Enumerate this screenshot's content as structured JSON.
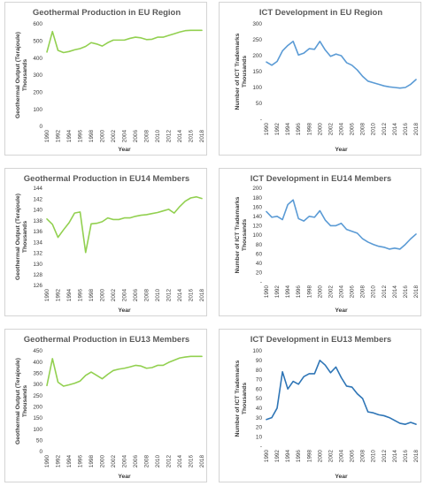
{
  "colors": {
    "geothermal": "#92d050",
    "ict": "#5b9bd5",
    "ict_eu13": "#2e75b6"
  },
  "chart_data": [
    {
      "type": "line",
      "title": "Geothermal Production in EU Region",
      "ylabel": "Geothermal Output (Terajoule)",
      "yunit": "Thousands",
      "xlabel": "Year",
      "x": [
        1990,
        1991,
        1992,
        1993,
        1994,
        1995,
        1996,
        1997,
        1998,
        1999,
        2000,
        2001,
        2002,
        2003,
        2004,
        2005,
        2006,
        2007,
        2008,
        2009,
        2010,
        2011,
        2012,
        2013,
        2014,
        2015,
        2016,
        2017,
        2018
      ],
      "values": [
        435,
        555,
        445,
        432,
        438,
        448,
        455,
        468,
        490,
        482,
        470,
        490,
        505,
        505,
        505,
        515,
        522,
        518,
        508,
        510,
        522,
        522,
        532,
        542,
        552,
        560,
        562,
        562,
        562
      ],
      "ylim": [
        0,
        600
      ],
      "yticks": [
        "0",
        "100",
        "200",
        "300",
        "400",
        "500",
        "600"
      ],
      "xticks": [
        "1990",
        "1992",
        "1994",
        "1996",
        "1998",
        "2000",
        "2002",
        "2004",
        "2006",
        "2008",
        "2010",
        "2012",
        "2014",
        "2016",
        "2018"
      ],
      "color": "#92d050"
    },
    {
      "type": "line",
      "title": "ICT Development in EU Region",
      "ylabel": "Number of ICT Trademarks",
      "yunit": "Thousands",
      "xlabel": "Year",
      "x": [
        1990,
        1991,
        1992,
        1993,
        1994,
        1995,
        1996,
        1997,
        1998,
        1999,
        2000,
        2001,
        2002,
        2003,
        2004,
        2005,
        2006,
        2007,
        2008,
        2009,
        2010,
        2011,
        2012,
        2013,
        2014,
        2015,
        2016,
        2017,
        2018
      ],
      "values": [
        180,
        170,
        182,
        215,
        232,
        245,
        202,
        208,
        222,
        220,
        245,
        218,
        198,
        205,
        200,
        178,
        170,
        155,
        135,
        120,
        115,
        110,
        105,
        102,
        100,
        98,
        100,
        110,
        125
      ],
      "ylim": [
        0,
        300
      ],
      "yticks": [
        "-",
        "50",
        "100",
        "150",
        "200",
        "250",
        "300"
      ],
      "xticks": [
        "1990",
        "1992",
        "1994",
        "1996",
        "1998",
        "2000",
        "2002",
        "2004",
        "2006",
        "2008",
        "2010",
        "2012",
        "2014",
        "2016",
        "2018"
      ],
      "color": "#5b9bd5"
    },
    {
      "type": "line",
      "title": "Geothermal Production in EU14 Members",
      "ylabel": "Geothermal Output (Terajoule)",
      "yunit": "Thousands",
      "xlabel": "Year",
      "x": [
        1990,
        1991,
        1992,
        1993,
        1994,
        1995,
        1996,
        1997,
        1998,
        1999,
        2000,
        2001,
        2002,
        2003,
        2004,
        2005,
        2006,
        2007,
        2008,
        2009,
        2010,
        2011,
        2012,
        2013,
        2014,
        2015,
        2016,
        2017,
        2018
      ],
      "values": [
        138.3,
        137.3,
        134.9,
        136.3,
        137.6,
        139.4,
        139.6,
        132.1,
        137.4,
        137.5,
        137.8,
        138.5,
        138.2,
        138.2,
        138.5,
        138.5,
        138.8,
        139.0,
        139.1,
        139.3,
        139.5,
        139.8,
        140.1,
        139.4,
        140.6,
        141.6,
        142.2,
        142.4,
        142.1
      ],
      "ylim": [
        126,
        144
      ],
      "yticks": [
        "126",
        "128",
        "130",
        "132",
        "134",
        "136",
        "138",
        "140",
        "142",
        "144"
      ],
      "xticks": [
        "1990",
        "1992",
        "1994",
        "1996",
        "1998",
        "2000",
        "2002",
        "2004",
        "2006",
        "2008",
        "2010",
        "2012",
        "2014",
        "2016",
        "2018"
      ],
      "color": "#92d050"
    },
    {
      "type": "line",
      "title": "ICT Development in EU14 Members",
      "ylabel": "Number of ICT Trademarks",
      "yunit": "Thousands",
      "xlabel": "Year",
      "x": [
        1990,
        1991,
        1992,
        1993,
        1994,
        1995,
        1996,
        1997,
        1998,
        1999,
        2000,
        2001,
        2002,
        2003,
        2004,
        2005,
        2006,
        2007,
        2008,
        2009,
        2010,
        2011,
        2012,
        2013,
        2014,
        2015,
        2016,
        2017,
        2018
      ],
      "values": [
        150,
        138,
        140,
        133,
        165,
        175,
        135,
        130,
        140,
        138,
        152,
        132,
        120,
        120,
        125,
        112,
        108,
        104,
        92,
        85,
        80,
        76,
        74,
        70,
        72,
        70,
        80,
        92,
        102
      ],
      "ylim": [
        0,
        200
      ],
      "yticks": [
        "-",
        "20",
        "40",
        "60",
        "80",
        "100",
        "120",
        "140",
        "160",
        "180",
        "200"
      ],
      "xticks": [
        "1990",
        "1992",
        "1994",
        "1996",
        "1998",
        "2000",
        "2002",
        "2004",
        "2006",
        "2008",
        "2010",
        "2012",
        "2014",
        "2016",
        "2018"
      ],
      "color": "#5b9bd5"
    },
    {
      "type": "line",
      "title": "Geothermal Production in EU13 Members",
      "ylabel": "Geothermal Output (Terajoule)",
      "yunit": "Thousands",
      "xlabel": "Year",
      "x": [
        1990,
        1991,
        1992,
        1993,
        1994,
        1995,
        1996,
        1997,
        1998,
        1999,
        2000,
        2001,
        2002,
        2003,
        2004,
        2005,
        2006,
        2007,
        2008,
        2009,
        2010,
        2011,
        2012,
        2013,
        2014,
        2015,
        2016,
        2017,
        2018
      ],
      "values": [
        295,
        415,
        310,
        292,
        298,
        305,
        315,
        340,
        355,
        340,
        325,
        345,
        362,
        368,
        372,
        378,
        385,
        382,
        372,
        375,
        385,
        385,
        398,
        408,
        418,
        422,
        425,
        425,
        425
      ],
      "ylim": [
        0,
        450
      ],
      "yticks": [
        "0",
        "50",
        "100",
        "150",
        "200",
        "250",
        "300",
        "350",
        "400",
        "450"
      ],
      "xticks": [
        "1990",
        "1992",
        "1994",
        "1996",
        "1998",
        "2000",
        "2002",
        "2004",
        "2006",
        "2008",
        "2010",
        "2012",
        "2014",
        "2016",
        "2018"
      ],
      "color": "#92d050"
    },
    {
      "type": "line",
      "title": "ICT Development in EU13 Members",
      "ylabel": "Number of ICT Trademarks",
      "yunit": "Thousands",
      "xlabel": "Year",
      "x": [
        1990,
        1991,
        1992,
        1993,
        1994,
        1995,
        1996,
        1997,
        1998,
        1999,
        2000,
        2001,
        2002,
        2003,
        2004,
        2005,
        2006,
        2007,
        2008,
        2009,
        2010,
        2011,
        2012,
        2013,
        2014,
        2015,
        2016,
        2017,
        2018
      ],
      "values": [
        28,
        30,
        40,
        78,
        60,
        68,
        65,
        73,
        76,
        76,
        90,
        85,
        77,
        83,
        72,
        63,
        62,
        55,
        50,
        36,
        35,
        33,
        32,
        30,
        27,
        24,
        23,
        25,
        23
      ],
      "ylim": [
        0,
        100
      ],
      "yticks": [
        "-",
        "10",
        "20",
        "30",
        "40",
        "50",
        "60",
        "70",
        "80",
        "90",
        "100"
      ],
      "xticks": [
        "1990",
        "1992",
        "1994",
        "1996",
        "1998",
        "2000",
        "2002",
        "2004",
        "2006",
        "2008",
        "2010",
        "2012",
        "2014",
        "2016",
        "2018"
      ],
      "color": "#2e75b6"
    }
  ]
}
